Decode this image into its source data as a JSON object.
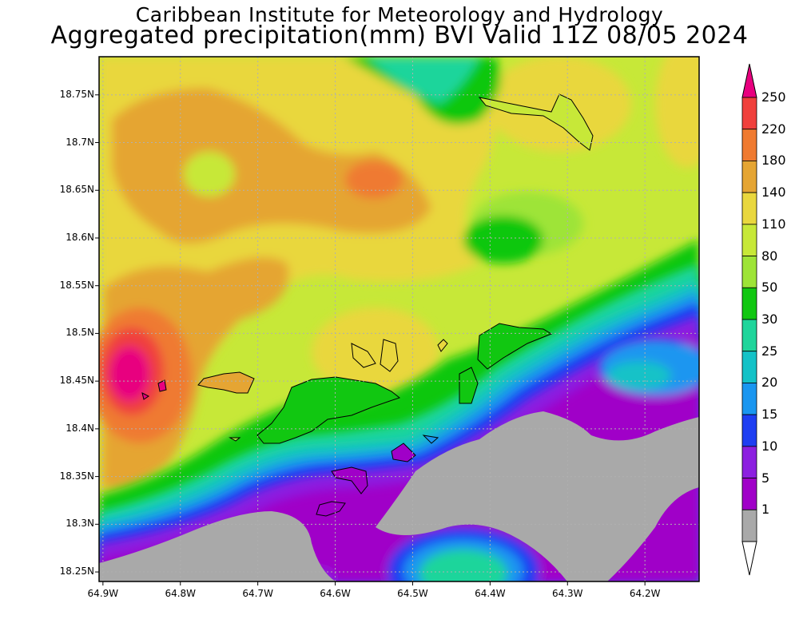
{
  "title": {
    "line1": "Caribbean Institute for Meteorology and Hydrology",
    "line2": "Aggregated precipitation(mm) BVI Valid 11Z 08/05 2024"
  },
  "map": {
    "lat_labels": [
      "18.75N",
      "18.7N",
      "18.65N",
      "18.6N",
      "18.55N",
      "18.5N",
      "18.45N",
      "18.4N",
      "18.35N",
      "18.3N",
      "18.25N"
    ],
    "lon_labels": [
      "64.9W",
      "64.8W",
      "64.7W",
      "64.6W",
      "64.5W",
      "64.4W",
      "64.3W",
      "64.2W"
    ],
    "lat_range": [
      18.24,
      18.79
    ],
    "lon_range": [
      -64.905,
      -64.13
    ],
    "grid": true
  },
  "colorbar": {
    "labels": [
      "250",
      "220",
      "180",
      "140",
      "110",
      "80",
      "50",
      "30",
      "25",
      "20",
      "15",
      "10",
      "5",
      "1"
    ],
    "colors": [
      "#e8007f",
      "#f0403c",
      "#ef7a30",
      "#e5a533",
      "#e9d73e",
      "#c7e838",
      "#9ee437",
      "#11c711",
      "#1fd59b",
      "#14c2c7",
      "#1a96f0",
      "#1e3ef2",
      "#8c1fe0",
      "#a000c8",
      "#a9a9a9",
      "#ffffff"
    ]
  }
}
